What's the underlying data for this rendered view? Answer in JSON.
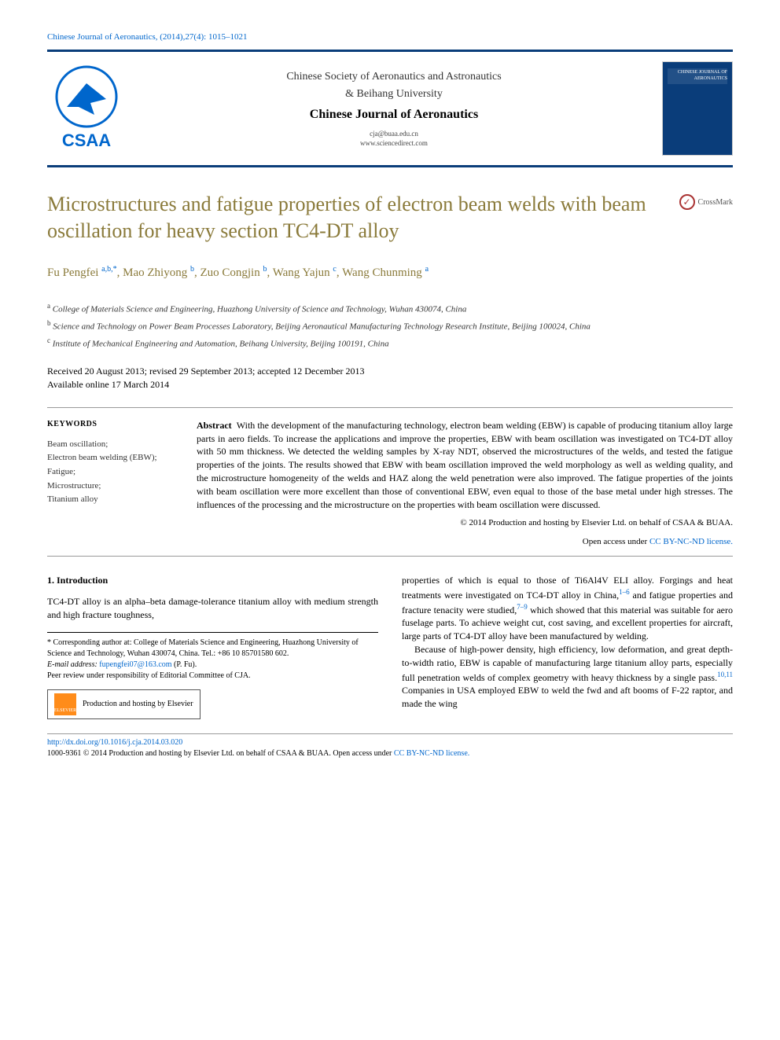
{
  "journal_ref": "Chinese Journal of Aeronautics, (2014),27(4): 1015–1021",
  "header": {
    "society_line1": "Chinese Society of Aeronautics and Astronautics",
    "society_line2": "& Beihang University",
    "journal_name": "Chinese Journal of Aeronautics",
    "email": "cja@buaa.edu.cn",
    "url": "www.sciencedirect.com",
    "logo_text": "CSAA",
    "cover_text": "CHINESE JOURNAL OF AERONAUTICS",
    "logo_color": "#0066cc",
    "border_color": "#0a3d7a"
  },
  "crossmark": "CrossMark",
  "title": "Microstructures and fatigue properties of electron beam welds with beam oscillation for heavy section TC4-DT alloy",
  "title_color": "#8a7a3a",
  "authors_html": "Fu Pengfei <sup class='author-link'>a,b,</sup><sup class='author-link'>*</sup>, Mao Zhiyong <sup class='author-link'>b</sup>, Zuo Congjin <sup class='author-link'>b</sup>, Wang Yajun <sup class='author-link'>c</sup>, Wang Chunming <sup class='author-link'>a</sup>",
  "affiliations": [
    {
      "sup": "a",
      "text": "College of Materials Science and Engineering, Huazhong University of Science and Technology, Wuhan 430074, China"
    },
    {
      "sup": "b",
      "text": "Science and Technology on Power Beam Processes Laboratory, Beijing Aeronautical Manufacturing Technology Research Institute, Beijing 100024, China"
    },
    {
      "sup": "c",
      "text": "Institute of Mechanical Engineering and Automation, Beihang University, Beijing 100191, China"
    }
  ],
  "dates": {
    "received": "Received 20 August 2013; revised 29 September 2013; accepted 12 December 2013",
    "available": "Available online 17 March 2014"
  },
  "keywords_head": "KEYWORDS",
  "keywords": "Beam oscillation;\nElectron beam welding (EBW);\nFatigue;\nMicrostructure;\nTitanium alloy",
  "abstract_label": "Abstract",
  "abstract": "With the development of the manufacturing technology, electron beam welding (EBW) is capable of producing titanium alloy large parts in aero fields. To increase the applications and improve the properties, EBW with beam oscillation was investigated on TC4-DT alloy with 50 mm thickness. We detected the welding samples by X-ray NDT, observed the microstructures of the welds, and tested the fatigue properties of the joints. The results showed that EBW with beam oscillation improved the weld morphology as well as welding quality, and the microstructure homogeneity of the welds and HAZ along the weld penetration were also improved. The fatigue properties of the joints with beam oscillation were more excellent than those of conventional EBW, even equal to those of the base metal under high stresses. The influences of the processing and the microstructure on the properties with beam oscillation were discussed.",
  "copyright": "© 2014 Production and hosting by Elsevier Ltd. on behalf of CSAA & BUAA.",
  "license_prefix": "Open access under ",
  "license": "CC BY-NC-ND license.",
  "section1_head": "1. Introduction",
  "col_left_p1": "TC4-DT alloy is an alpha–beta damage-tolerance titanium alloy with medium strength and high fracture toughness,",
  "corr": {
    "star": "*",
    "text": "Corresponding author at: College of Materials Science and Engineering, Huazhong University of Science and Technology, Wuhan 430074, China. Tel.: +86 10 85701580 602.",
    "email_label": "E-mail address: ",
    "email": "fupengfei07@163.com",
    "email_suffix": " (P. Fu).",
    "peer": "Peer review under responsibility of Editorial Committee of CJA."
  },
  "elsevier": {
    "logo": "ELSEVIER",
    "text": "Production and hosting by Elsevier"
  },
  "col_right_p1_a": "properties of which is equal to those of Ti6Al4V ELI alloy. Forgings and heat treatments were investigated on TC4-DT alloy in China,",
  "col_right_ref1": "1–6",
  "col_right_p1_b": " and fatigue properties and fracture tenacity were studied,",
  "col_right_ref2": "7–9",
  "col_right_p1_c": " which showed that this material was suitable for aero fuselage parts. To achieve weight cut, cost saving, and excellent properties for aircraft, large parts of TC4-DT alloy have been manufactured by welding.",
  "col_right_p2_a": "Because of high-power density, high efficiency, low deformation, and great depth-to-width ratio, EBW is capable of manufacturing large titanium alloy parts, especially full penetration welds of complex geometry with heavy thickness by a single pass.",
  "col_right_ref3": "10,11",
  "col_right_p2_b": " Companies in USA employed EBW to weld the fwd and aft booms of F-22 raptor, and made the wing",
  "footer": {
    "doi": "http://dx.doi.org/10.1016/j.cja.2014.03.020",
    "issn_line_a": "1000-9361 © 2014 Production and hosting by Elsevier Ltd. on behalf of CSAA & BUAA. ",
    "issn_line_b": "Open access under ",
    "license": "CC BY-NC-ND license."
  }
}
